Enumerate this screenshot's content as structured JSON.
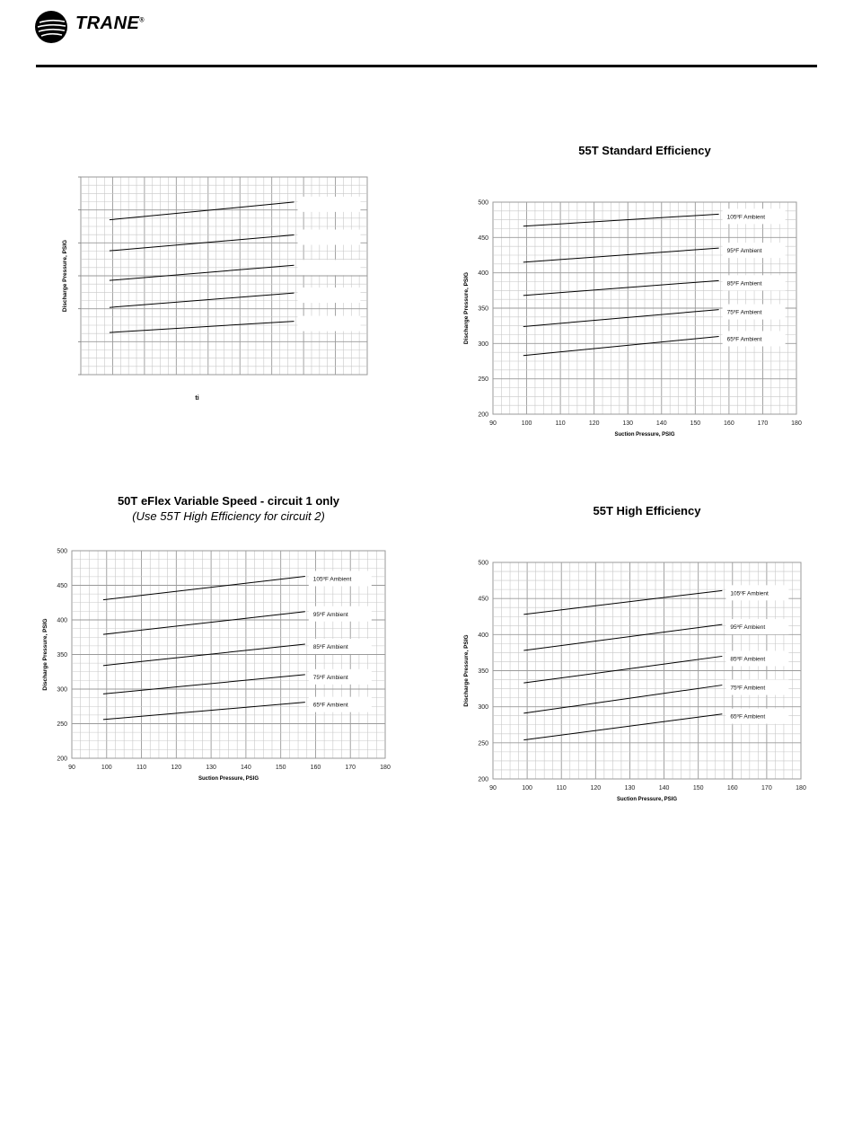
{
  "header": {
    "brand": "TRANE",
    "brand_mark": "®",
    "logo_icon": "trane-globe-logo-icon",
    "rule_color": "#000000"
  },
  "chart_data": [
    {
      "type": "line",
      "title": "",
      "subtitle": "",
      "xlabel": "ti",
      "ylabel": "Discharge Pressure, PSIG",
      "xlim": [
        90,
        180
      ],
      "ylim": [
        200,
        500
      ],
      "xticks": [],
      "yticks": [],
      "grid": true,
      "legend": "inline-right",
      "series": [
        {
          "name": "",
          "x": [
            99,
            157
          ],
          "y": [
            435,
            462
          ]
        },
        {
          "name": "",
          "x": [
            99,
            157
          ],
          "y": [
            388,
            412
          ]
        },
        {
          "name": "",
          "x": [
            99,
            157
          ],
          "y": [
            343,
            366
          ]
        },
        {
          "name": "",
          "x": [
            99,
            157
          ],
          "y": [
            302,
            324
          ]
        },
        {
          "name": "",
          "x": [
            99,
            157
          ],
          "y": [
            264,
            281
          ]
        }
      ]
    },
    {
      "type": "line",
      "title": "55T Standard Efficiency",
      "subtitle": "",
      "xlabel": "Suction Pressure, PSIG",
      "ylabel": "Discharge Pressure, PSIG",
      "xlim": [
        90,
        180
      ],
      "ylim": [
        200,
        500
      ],
      "xticks": [
        "90",
        "100",
        "110",
        "120",
        "130",
        "140",
        "150",
        "160",
        "170",
        "180"
      ],
      "yticks": [
        "200",
        "250",
        "300",
        "350",
        "400",
        "450",
        "500"
      ],
      "grid": true,
      "legend": "inline-right",
      "series": [
        {
          "name": "105ºF Ambient",
          "x": [
            99,
            157
          ],
          "y": [
            466,
            483
          ]
        },
        {
          "name": "95ºF Ambient",
          "x": [
            99,
            157
          ],
          "y": [
            415,
            435
          ]
        },
        {
          "name": "85ºF Ambient",
          "x": [
            99,
            157
          ],
          "y": [
            368,
            389
          ]
        },
        {
          "name": "75ºF Ambient",
          "x": [
            99,
            157
          ],
          "y": [
            324,
            348
          ]
        },
        {
          "name": "65ºF Ambient",
          "x": [
            99,
            157
          ],
          "y": [
            283,
            310
          ]
        }
      ]
    },
    {
      "type": "line",
      "title": "50T eFlex Variable Speed - circuit 1 only",
      "subtitle": "(Use 55T High Efficiency for circuit 2)",
      "xlabel": "Suction Pressure, PSIG",
      "ylabel": "Discharge Pressure, PSIG",
      "xlim": [
        90,
        180
      ],
      "ylim": [
        200,
        500
      ],
      "xticks": [
        "90",
        "100",
        "110",
        "120",
        "130",
        "140",
        "150",
        "160",
        "170",
        "180"
      ],
      "yticks": [
        "200",
        "250",
        "300",
        "350",
        "400",
        "450",
        "500"
      ],
      "grid": true,
      "legend": "inline-right",
      "series": [
        {
          "name": "105ºF Ambient",
          "x": [
            99,
            157
          ],
          "y": [
            429,
            463
          ]
        },
        {
          "name": "95ºF Ambient",
          "x": [
            99,
            157
          ],
          "y": [
            379,
            412
          ]
        },
        {
          "name": "85ºF Ambient",
          "x": [
            99,
            157
          ],
          "y": [
            334,
            365
          ]
        },
        {
          "name": "75ºF Ambient",
          "x": [
            99,
            157
          ],
          "y": [
            293,
            321
          ]
        },
        {
          "name": "65ºF Ambient",
          "x": [
            99,
            157
          ],
          "y": [
            256,
            281
          ]
        }
      ]
    },
    {
      "type": "line",
      "title": "55T High Efficiency",
      "subtitle": "",
      "xlabel": "Suction Pressure, PSIG",
      "ylabel": "Discharge Pressure, PSIG",
      "xlim": [
        90,
        180
      ],
      "ylim": [
        200,
        500
      ],
      "xticks": [
        "90",
        "100",
        "110",
        "120",
        "130",
        "140",
        "150",
        "160",
        "170",
        "180"
      ],
      "yticks": [
        "200",
        "250",
        "300",
        "350",
        "400",
        "450",
        "500"
      ],
      "grid": true,
      "legend": "inline-right",
      "series": [
        {
          "name": "105ºF Ambient",
          "x": [
            99,
            157
          ],
          "y": [
            428,
            461
          ]
        },
        {
          "name": "95ºF Ambient",
          "x": [
            99,
            157
          ],
          "y": [
            378,
            414
          ]
        },
        {
          "name": "85ºF Ambient",
          "x": [
            99,
            157
          ],
          "y": [
            333,
            370
          ]
        },
        {
          "name": "75ºF Ambient",
          "x": [
            99,
            157
          ],
          "y": [
            291,
            330
          ]
        },
        {
          "name": "65ºF Ambient",
          "x": [
            99,
            157
          ],
          "y": [
            254,
            290
          ]
        }
      ]
    }
  ]
}
